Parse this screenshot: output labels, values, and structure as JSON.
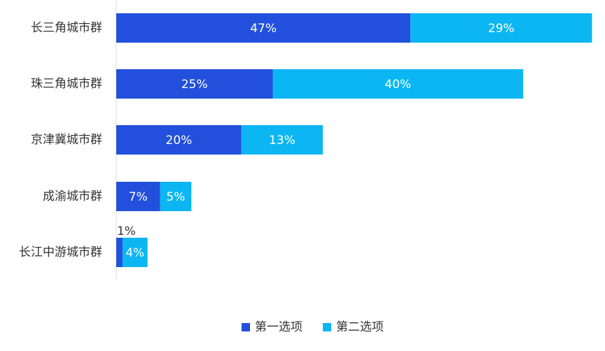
{
  "chart_data": {
    "type": "bar",
    "orientation": "horizontal",
    "stacked": true,
    "categories": [
      "长三角城市群",
      "珠三角城市群",
      "京津冀城市群",
      "成渝城市群",
      "长江中游城市群"
    ],
    "series": [
      {
        "name": "第一选项",
        "values": [
          47,
          25,
          20,
          7,
          1
        ],
        "labels": [
          "47%",
          "25%",
          "20%",
          "7%",
          "1%"
        ],
        "color": "#2250dc"
      },
      {
        "name": "第二选项",
        "values": [
          29,
          40,
          13,
          5,
          4
        ],
        "labels": [
          "29%",
          "40%",
          "13%",
          "5%",
          "4%"
        ],
        "color": "#0cb6f2"
      }
    ],
    "xlim": [
      0,
      76
    ],
    "grid": false,
    "legend_position": "bottom-center"
  }
}
